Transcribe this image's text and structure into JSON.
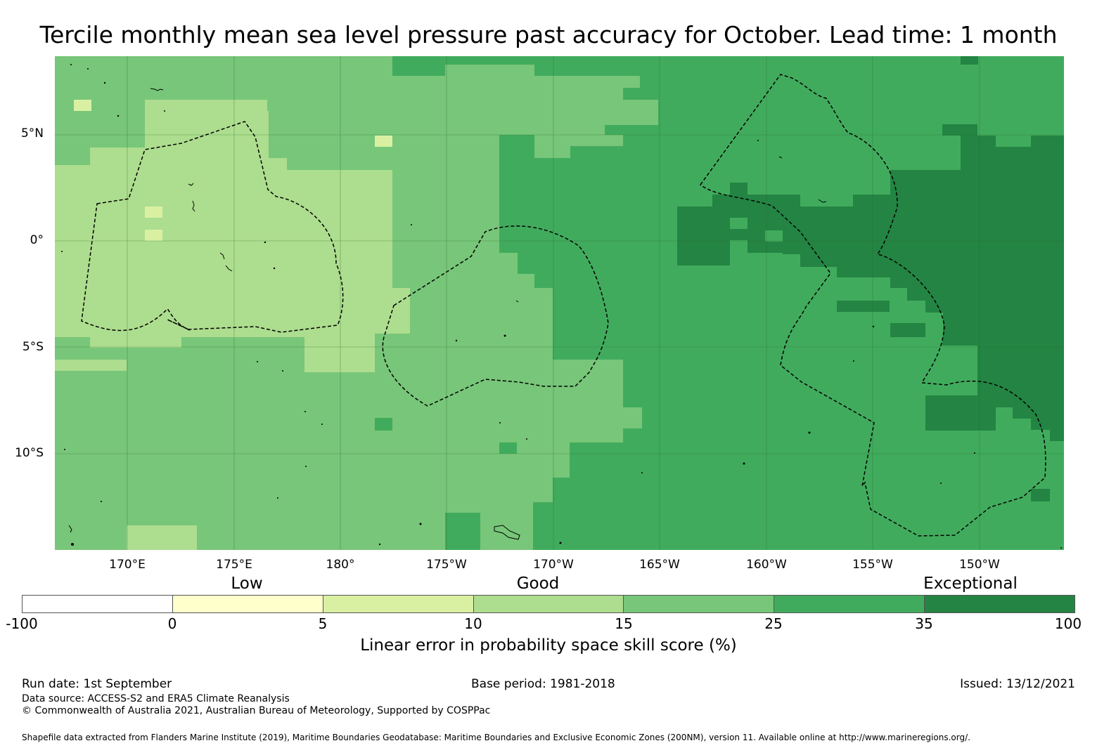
{
  "title": "Tercile monthly mean sea level pressure past accuracy for October. Lead time: 1 month",
  "map": {
    "lat_labels": [
      "5°N",
      "0°",
      "5°S",
      "10°S"
    ],
    "lon_labels": [
      "170°E",
      "175°E",
      "180°",
      "175°W",
      "170°W",
      "165°W",
      "160°W",
      "155°W",
      "150°W"
    ]
  },
  "colorbar": {
    "categories": [
      "Low",
      "Good",
      "Exceptional"
    ],
    "ticks": [
      "-100",
      "0",
      "5",
      "10",
      "15",
      "25",
      "35",
      "100"
    ],
    "colors": [
      "#ffffff",
      "#ffffcc",
      "#d9f0a3",
      "#addd8e",
      "#78c679",
      "#41ab5d",
      "#238443"
    ],
    "label": "Linear error in probability space skill score (%)"
  },
  "footer": {
    "run_date": "Run date: 1st September",
    "base_period": "Base period: 1981-2018",
    "issued": "Issued: 13/12/2021",
    "data_source": "Data source: ACCESS-S2 and ERA5 Climate Reanalysis",
    "copyright": "© Commonwealth of Australia 2021, Australian Bureau of Meteorology, Supported by COSPPac",
    "shapefile": "Shapefile data extracted from Flanders Marine Institute (2019), Maritime Boundaries Geodatabase: Maritime Boundaries and Exclusive Economic Zones (200NM), version 11. Available online at http://www.marineregions.org/."
  }
}
